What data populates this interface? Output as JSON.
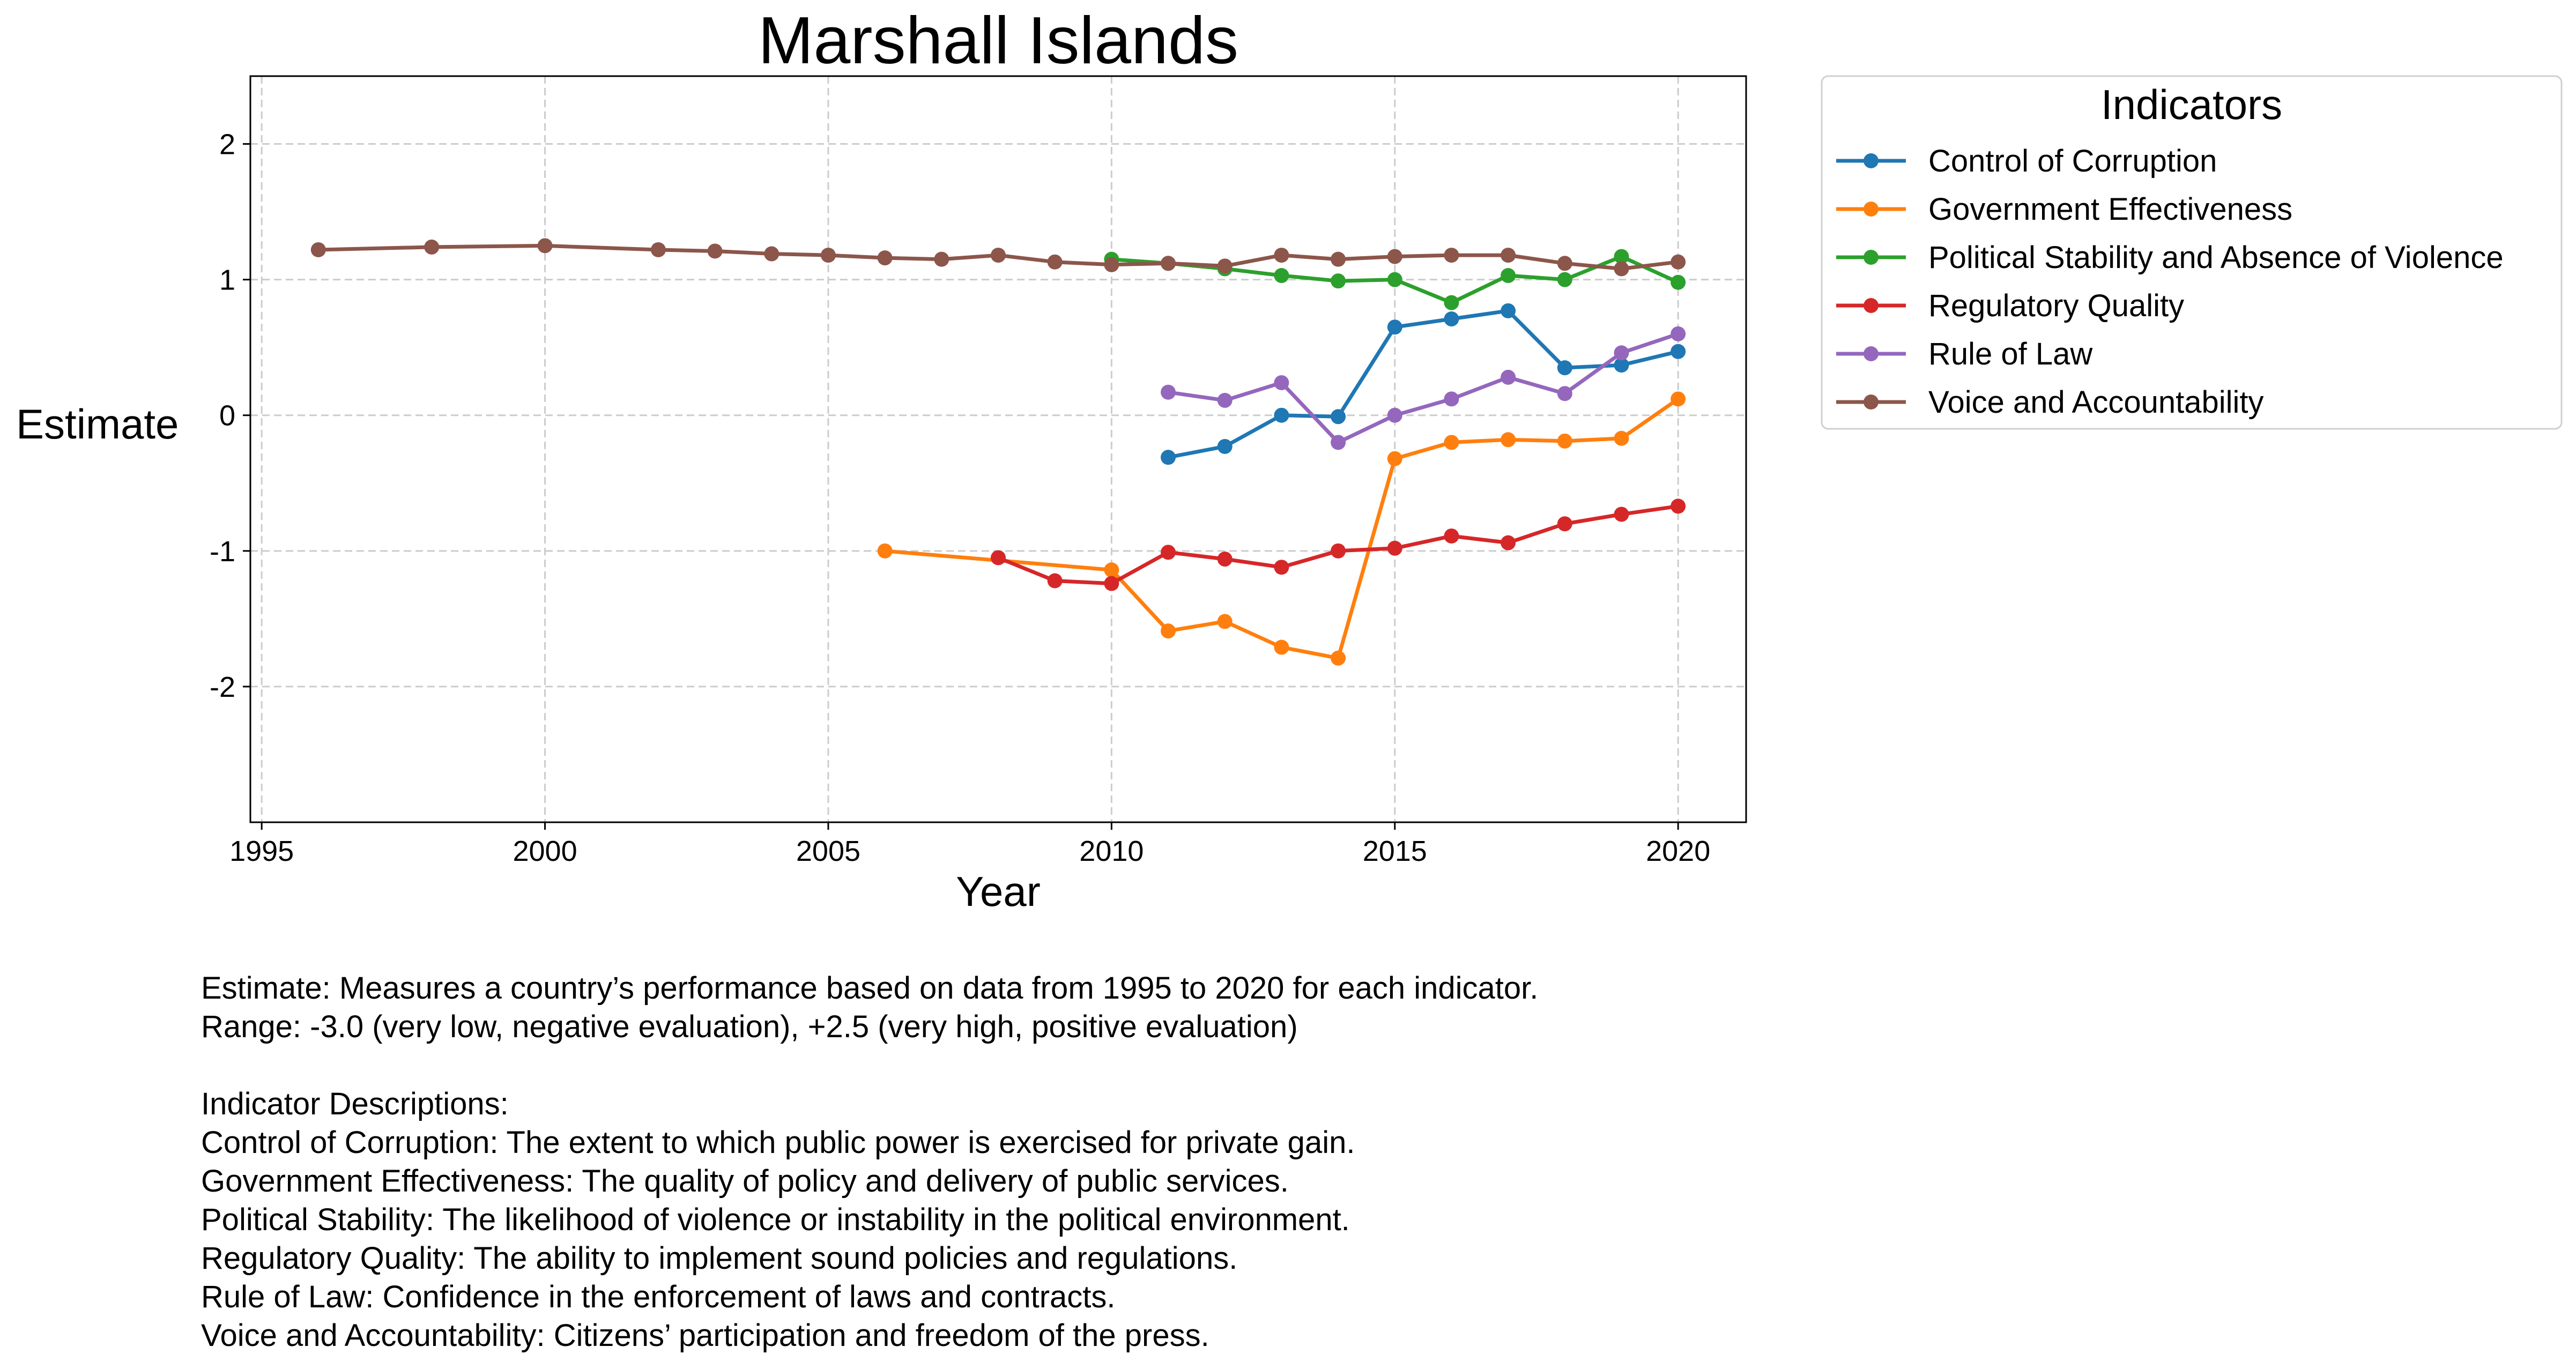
{
  "chart_data": {
    "type": "line",
    "title": "Marshall Islands",
    "xlabel": "Year",
    "ylabel": "Estimate",
    "xlim": [
      1994.8,
      2021.2
    ],
    "ylim": [
      -3.0,
      2.5
    ],
    "xticks": [
      1995,
      2000,
      2005,
      2010,
      2015,
      2020
    ],
    "yticks": [
      -2,
      -1,
      0,
      1,
      2
    ],
    "grid": true,
    "legend": {
      "title": "Indicators",
      "placement": "outside-top-right"
    },
    "series": [
      {
        "name": "Control of Corruption",
        "color": "#1f77b4",
        "x": [
          2011,
          2012,
          2013,
          2014,
          2015,
          2016,
          2017,
          2018,
          2019,
          2020
        ],
        "y": [
          -0.31,
          -0.23,
          0.0,
          -0.01,
          0.65,
          0.71,
          0.77,
          0.35,
          0.37,
          0.47
        ]
      },
      {
        "name": "Government Effectiveness",
        "color": "#ff7f0e",
        "x": [
          2006,
          2010,
          2011,
          2012,
          2013,
          2014,
          2015,
          2016,
          2017,
          2018,
          2019,
          2020
        ],
        "y": [
          -1.0,
          -1.14,
          -1.59,
          -1.52,
          -1.71,
          -1.79,
          -0.32,
          -0.2,
          -0.18,
          -0.19,
          -0.17,
          0.12
        ]
      },
      {
        "name": "Political Stability and Absence of Violence",
        "color": "#2ca02c",
        "x": [
          2010,
          2011,
          2012,
          2013,
          2014,
          2015,
          2016,
          2017,
          2018,
          2019,
          2020
        ],
        "y": [
          1.15,
          1.12,
          1.08,
          1.03,
          0.99,
          1.0,
          0.83,
          1.03,
          1.0,
          1.17,
          0.98
        ]
      },
      {
        "name": "Regulatory Quality",
        "color": "#d62728",
        "x": [
          2008,
          2009,
          2010,
          2011,
          2012,
          2013,
          2014,
          2015,
          2016,
          2017,
          2018,
          2019,
          2020
        ],
        "y": [
          -1.05,
          -1.22,
          -1.24,
          -1.01,
          -1.06,
          -1.12,
          -1.0,
          -0.98,
          -0.89,
          -0.94,
          -0.8,
          -0.73,
          -0.67
        ]
      },
      {
        "name": "Rule of Law",
        "color": "#9467bd",
        "x": [
          2011,
          2012,
          2013,
          2014,
          2015,
          2016,
          2017,
          2018,
          2019,
          2020
        ],
        "y": [
          0.17,
          0.11,
          0.24,
          -0.2,
          0.0,
          0.12,
          0.28,
          0.16,
          0.46,
          0.6
        ]
      },
      {
        "name": "Voice and Accountability",
        "color": "#8c564b",
        "x": [
          1996,
          1998,
          2000,
          2002,
          2003,
          2004,
          2005,
          2006,
          2007,
          2008,
          2009,
          2010,
          2011,
          2012,
          2013,
          2014,
          2015,
          2016,
          2017,
          2018,
          2019,
          2020
        ],
        "y": [
          1.22,
          1.24,
          1.25,
          1.22,
          1.21,
          1.19,
          1.18,
          1.16,
          1.15,
          1.18,
          1.13,
          1.11,
          1.12,
          1.1,
          1.18,
          1.15,
          1.17,
          1.18,
          1.18,
          1.12,
          1.08,
          1.13
        ]
      }
    ]
  },
  "notes": [
    "Estimate: Measures a country’s performance based on data from 1995 to 2020 for each indicator.",
    "Range: -3.0 (very low, negative evaluation), +2.5 (very high, positive evaluation)",
    "",
    "Indicator Descriptions:",
    "Control of Corruption: The extent to which public power is exercised for private gain.",
    "Government Effectiveness: The quality of policy and delivery of public services.",
    "Political Stability: The likelihood of violence or instability in the political environment.",
    "Regulatory Quality: The ability to implement sound policies and regulations.",
    "Rule of Law: Confidence in the enforcement of laws and contracts.",
    "Voice and Accountability: Citizens’ participation and freedom of the press."
  ]
}
